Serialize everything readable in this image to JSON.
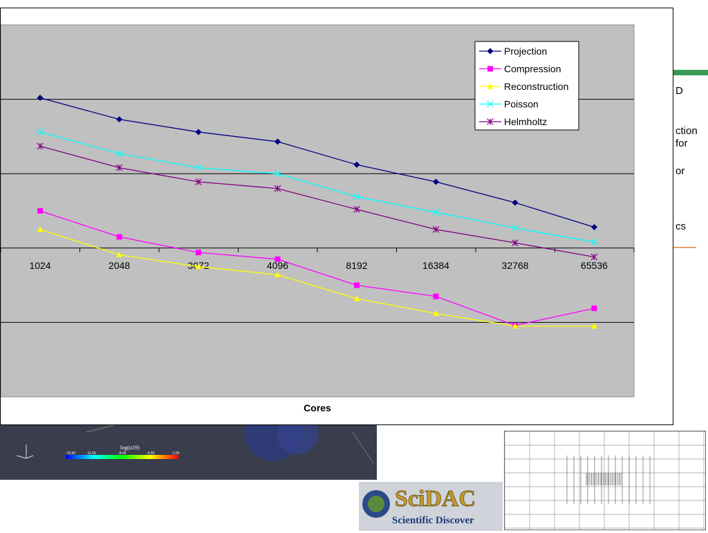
{
  "background": {
    "fragments": [
      "D",
      "ction",
      "for",
      "or",
      "cs"
    ],
    "colorbar_label": "log(u19)",
    "colorbar_ticks": [
      "-15.00",
      "-11.50",
      "-8.00",
      "-4.50",
      "-1.00"
    ],
    "logo_title": "SciDAC",
    "logo_subtitle": "Scientific Discover"
  },
  "chart_data": {
    "type": "line",
    "title": "",
    "xlabel": "Cores",
    "ylabel": "",
    "categories": [
      "1024",
      "2048",
      "3072",
      "4096",
      "8192",
      "16384",
      "32768",
      "65536"
    ],
    "grid": true,
    "legend": "top-right",
    "background": "#c0c0c0",
    "series": [
      {
        "name": "Projection",
        "color": "#000080",
        "marker": "diamond",
        "values": [
          2.02,
          1.73,
          1.56,
          1.43,
          1.12,
          0.89,
          0.61,
          0.28
        ]
      },
      {
        "name": "Compression",
        "color": "#ff00ff",
        "marker": "square",
        "values": [
          0.5,
          0.15,
          -0.06,
          -0.15,
          -0.5,
          -0.65,
          -1.04,
          -0.81
        ]
      },
      {
        "name": "Reconstruction",
        "color": "#ffff00",
        "marker": "triangle",
        "values": [
          0.25,
          -0.09,
          -0.25,
          -0.36,
          -0.68,
          -0.88,
          -1.05,
          -1.05
        ]
      },
      {
        "name": "Poisson",
        "color": "#00ffff",
        "marker": "x",
        "values": [
          1.56,
          1.27,
          1.08,
          1.0,
          0.69,
          0.48,
          0.27,
          0.08
        ]
      },
      {
        "name": "Helmholtz",
        "color": "#800080",
        "marker": "star",
        "values": [
          1.37,
          1.08,
          0.89,
          0.8,
          0.52,
          0.25,
          0.07,
          -0.12
        ]
      }
    ],
    "y_gridlines": [
      2.0,
      1.0,
      0.0,
      -1.0
    ],
    "ylim": [
      -2.0,
      3.0
    ]
  }
}
